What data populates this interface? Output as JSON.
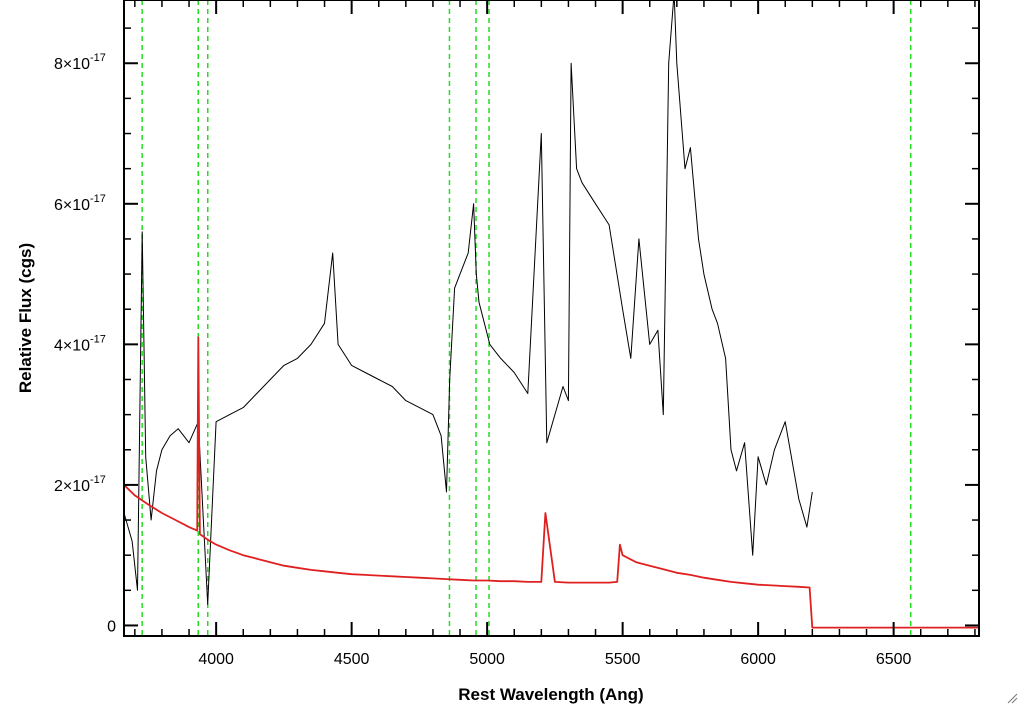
{
  "chart_data": {
    "type": "line",
    "xlabel": "Rest Wavelength (Ang)",
    "ylabel": "Relative Flux (cgs)",
    "xlim": [
      3660,
      6815
    ],
    "ylim": [
      -1.5e-18,
      8.9e-17
    ],
    "x_ticks": [
      {
        "value": 4000,
        "label": "4000"
      },
      {
        "value": 4500,
        "label": "4500"
      },
      {
        "value": 5000,
        "label": "5000"
      },
      {
        "value": 5500,
        "label": "5500"
      },
      {
        "value": 6000,
        "label": "6000"
      },
      {
        "value": 6500,
        "label": "6500"
      }
    ],
    "y_ticks": [
      {
        "value": 0,
        "mant": "0",
        "exp": ""
      },
      {
        "value": 2e-17,
        "mant": "2×10",
        "exp": "-17"
      },
      {
        "value": 4e-17,
        "mant": "4×10",
        "exp": "-17"
      },
      {
        "value": 6e-17,
        "mant": "6×10",
        "exp": "-17"
      },
      {
        "value": 8e-17,
        "mant": "8×10",
        "exp": "-17"
      }
    ],
    "vlines": [
      3727,
      3934,
      3969,
      4861,
      4959,
      5007,
      6563
    ],
    "series": [
      {
        "color": "#000000",
        "x": [
          3660,
          3690,
          3710,
          3727,
          3740,
          3760,
          3780,
          3800,
          3830,
          3860,
          3900,
          3934,
          3969,
          4000,
          4050,
          4100,
          4150,
          4200,
          4250,
          4300,
          4350,
          4400,
          4430,
          4450,
          4500,
          4550,
          4600,
          4650,
          4700,
          4750,
          4800,
          4830,
          4850,
          4862,
          4880,
          4900,
          4930,
          4950,
          4960,
          4970,
          4990,
          5010,
          5050,
          5100,
          5150,
          5200,
          5220,
          5250,
          5280,
          5300,
          5310,
          5330,
          5350,
          5400,
          5450,
          5500,
          5530,
          5560,
          5600,
          5630,
          5650,
          5670,
          5690,
          5700,
          5730,
          5750,
          5780,
          5800,
          5830,
          5850,
          5880,
          5900,
          5920,
          5950,
          5980,
          6000,
          6030,
          6060,
          6100,
          6150,
          6180,
          6200
        ],
        "y": [
          1.6e-17,
          1.2e-17,
          5e-18,
          5.6e-17,
          2.4e-17,
          1.5e-17,
          2.2e-17,
          2.5e-17,
          2.7e-17,
          2.8e-17,
          2.6e-17,
          2.9e-17,
          3e-18,
          2.9e-17,
          3e-17,
          3.1e-17,
          3.3e-17,
          3.5e-17,
          3.7e-17,
          3.8e-17,
          4e-17,
          4.3e-17,
          5.3e-17,
          4e-17,
          3.7e-17,
          3.6e-17,
          3.5e-17,
          3.4e-17,
          3.2e-17,
          3.1e-17,
          3e-17,
          2.7e-17,
          1.9e-17,
          3.5e-17,
          4.8e-17,
          5e-17,
          5.3e-17,
          6e-17,
          5e-17,
          4.6e-17,
          4.3e-17,
          4e-17,
          3.8e-17,
          3.6e-17,
          3.3e-17,
          7e-17,
          2.6e-17,
          3e-17,
          3.4e-17,
          3.2e-17,
          8e-17,
          6.5e-17,
          6.3e-17,
          6e-17,
          5.7e-17,
          4.5e-17,
          3.8e-17,
          5.5e-17,
          4e-17,
          4.2e-17,
          3e-17,
          8e-17,
          9e-17,
          8e-17,
          6.5e-17,
          6.8e-17,
          5.5e-17,
          5e-17,
          4.5e-17,
          4.3e-17,
          3.8e-17,
          2.5e-17,
          2.2e-17,
          2.6e-17,
          1e-17,
          2.4e-17,
          2e-17,
          2.5e-17,
          2.9e-17,
          1.8e-17,
          1.4e-17,
          1.9e-17
        ]
      },
      {
        "color": "#e02020",
        "x": [
          3660,
          3700,
          3750,
          3800,
          3850,
          3900,
          3930,
          3934,
          3940,
          3969,
          4000,
          4050,
          4100,
          4150,
          4200,
          4250,
          4300,
          4350,
          4400,
          4450,
          4500,
          4550,
          4600,
          4650,
          4700,
          4750,
          4800,
          4850,
          4900,
          4950,
          5000,
          5050,
          5100,
          5150,
          5200,
          5215,
          5250,
          5300,
          5350,
          5400,
          5450,
          5480,
          5490,
          5500,
          5550,
          5600,
          5650,
          5700,
          5750,
          5800,
          5850,
          5900,
          5950,
          6000,
          6050,
          6100,
          6150,
          6190,
          6200,
          6210,
          6815
        ],
        "y": [
          2e-17,
          1.85e-17,
          1.72e-17,
          1.6e-17,
          1.5e-17,
          1.4e-17,
          1.35e-17,
          4.1e-17,
          1.3e-17,
          1.22e-17,
          1.15e-17,
          1.07e-17,
          1e-17,
          9.5e-18,
          9e-18,
          8.5e-18,
          8.2e-18,
          7.9e-18,
          7.7e-18,
          7.5e-18,
          7.3e-18,
          7.2e-18,
          7.1e-18,
          7e-18,
          6.9e-18,
          6.8e-18,
          6.7e-18,
          6.6e-18,
          6.5e-18,
          6.4e-18,
          6.4e-18,
          6.3e-18,
          6.3e-18,
          6.2e-18,
          6.2e-18,
          1.6e-17,
          6.2e-18,
          6.1e-18,
          6.1e-18,
          6.1e-18,
          6.1e-18,
          6.2e-18,
          1.15e-17,
          1e-17,
          9e-18,
          8.5e-18,
          8e-18,
          7.5e-18,
          7.2e-18,
          6.8e-18,
          6.5e-18,
          6.2e-18,
          6e-18,
          5.8e-18,
          5.7e-18,
          5.6e-18,
          5.5e-18,
          5.4e-18,
          -3e-19,
          -3e-19,
          -3e-19
        ]
      }
    ]
  }
}
